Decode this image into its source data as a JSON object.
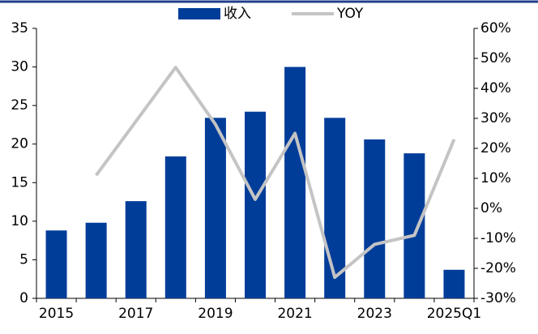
{
  "chart_data": {
    "type": "bar",
    "categories": [
      "2015",
      null,
      "2017",
      null,
      "2019",
      null,
      "2021",
      null,
      "2023",
      null,
      "2025Q1"
    ],
    "series": [
      {
        "name": "收入",
        "type": "bar",
        "color": "#003d99",
        "values": [
          8.8,
          9.8,
          12.6,
          18.4,
          23.4,
          24.2,
          30.0,
          23.4,
          20.6,
          18.8,
          3.7
        ]
      },
      {
        "name": "YOY",
        "type": "line",
        "axis": "y2",
        "color": "#c4c4c4",
        "values": [
          null,
          11,
          29,
          47,
          28,
          3,
          25,
          -23,
          -12,
          -9,
          23
        ]
      }
    ],
    "ylim": [
      0,
      35
    ],
    "yticks": [
      0,
      5,
      10,
      15,
      20,
      25,
      30,
      35
    ],
    "y2lim": [
      -30,
      60
    ],
    "y2ticks": [
      {
        "value": -30,
        "label": "-30%"
      },
      {
        "value": -20,
        "label": "-20%"
      },
      {
        "value": -10,
        "label": "-10%"
      },
      {
        "value": 0,
        "label": "0%"
      },
      {
        "value": 10,
        "label": "10%"
      },
      {
        "value": 20,
        "label": "20%"
      },
      {
        "value": 30,
        "label": "30%"
      },
      {
        "value": 40,
        "label": "40%"
      },
      {
        "value": 50,
        "label": "50%"
      },
      {
        "value": 60,
        "label": "60%"
      }
    ],
    "legend": "top",
    "grid": false
  }
}
